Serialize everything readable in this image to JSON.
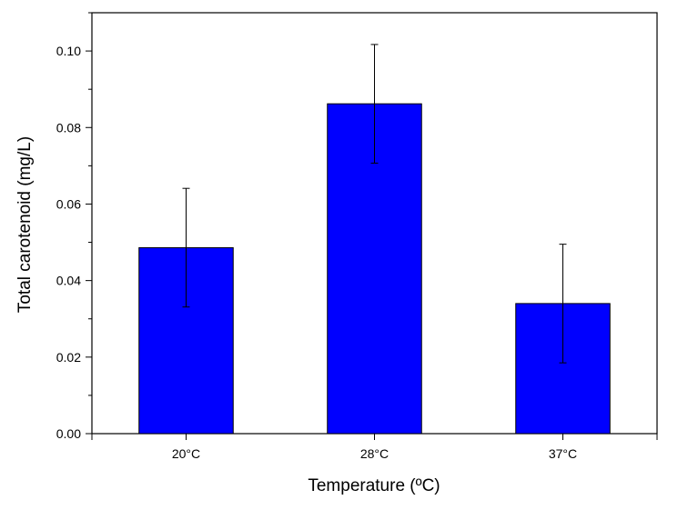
{
  "chart_data": {
    "type": "bar",
    "title": "",
    "xlabel": "Temperature (ºC)",
    "ylabel": "Total carotenoid (mg/L)",
    "categories": [
      "20°C",
      "28°C",
      "37°C"
    ],
    "values": [
      0.0486,
      0.0862,
      0.034
    ],
    "error": [
      0.0155,
      0.0155,
      0.0155
    ],
    "ylim": [
      0,
      0.11
    ],
    "yticks": [
      "0.00",
      "0.02",
      "0.04",
      "0.06",
      "0.08",
      "0.10"
    ],
    "ytick_values": [
      0,
      0.02,
      0.04,
      0.06,
      0.08,
      0.1
    ],
    "grid": false,
    "legend": "none",
    "colors": {
      "bar_fill": "#0000ff",
      "bar_stroke": "#000000",
      "axis": "#000000"
    }
  }
}
